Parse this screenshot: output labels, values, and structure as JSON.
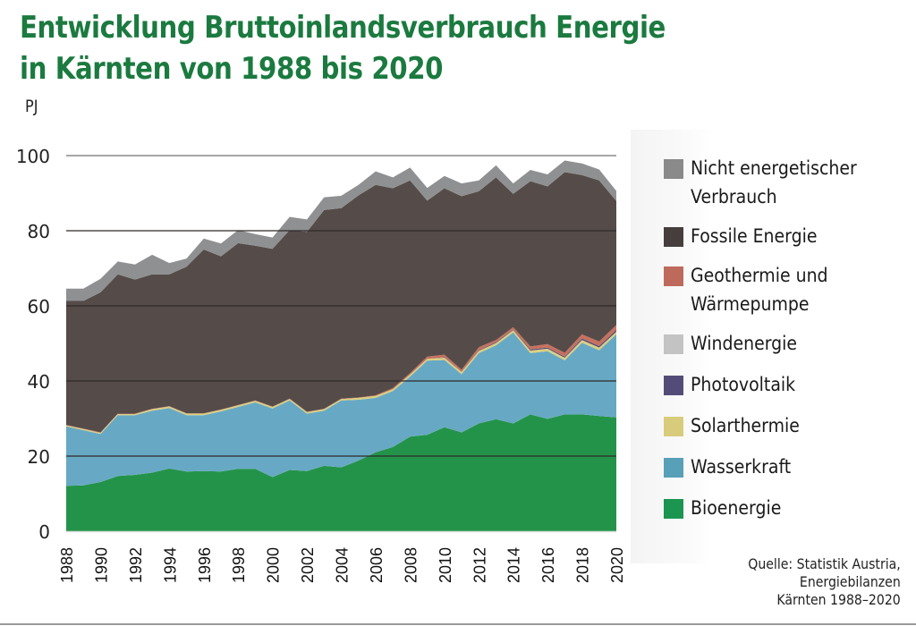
{
  "chart_data": {
    "type": "area",
    "stacked": true,
    "title": "Entwicklung Bruttoinlandsverbrauch Energie in Kärnten von 1988 bis 2020",
    "title_lines": [
      "Entwicklung Bruttoinlandsverbrauch Energie",
      "in Kärnten von 1988 bis 2020"
    ],
    "ylabel": "PJ",
    "xlabel": "",
    "ylim": [
      0,
      100
    ],
    "yticks": [
      0,
      20,
      40,
      60,
      80,
      100
    ],
    "grid": true,
    "legend_position": "right",
    "x": [
      1988,
      1989,
      1990,
      1991,
      1992,
      1993,
      1994,
      1995,
      1996,
      1997,
      1998,
      1999,
      2000,
      2001,
      2002,
      2003,
      2004,
      2005,
      2006,
      2007,
      2008,
      2009,
      2010,
      2011,
      2012,
      2013,
      2014,
      2015,
      2016,
      2017,
      2018,
      2019,
      2020
    ],
    "xtick_labels": [
      "1988",
      "1990",
      "1992",
      "1994",
      "1996",
      "1998",
      "2000",
      "2002",
      "2004",
      "2006",
      "2008",
      "2010",
      "2012",
      "2014",
      "2016",
      "2018",
      "2020"
    ],
    "series": [
      {
        "name": "Bioenergie",
        "color": "#24934a",
        "values": [
          12.1,
          12.2,
          13.1,
          14.7,
          15.0,
          15.6,
          16.7,
          15.9,
          16.0,
          15.9,
          16.6,
          16.6,
          14.4,
          16.3,
          16.0,
          17.4,
          17.0,
          18.8,
          21.0,
          22.4,
          25.2,
          25.7,
          27.7,
          26.3,
          28.7,
          29.8,
          28.7,
          31.1,
          29.9,
          31.1,
          31.1,
          30.7,
          30.3
        ]
      },
      {
        "name": "Wasserkraft",
        "color": "#67a9c4",
        "values": [
          15.8,
          14.7,
          12.8,
          16.2,
          15.9,
          16.5,
          16.1,
          15.0,
          14.9,
          16.0,
          16.5,
          17.7,
          18.3,
          18.5,
          15.3,
          14.7,
          17.8,
          16.2,
          14.5,
          14.9,
          16.0,
          19.7,
          17.9,
          15.5,
          18.7,
          19.7,
          24.2,
          16.3,
          18.0,
          14.4,
          19.1,
          17.5,
          22.1
        ]
      },
      {
        "name": "Solarthermie",
        "color": "#dccf7e",
        "values": [
          0.3,
          0.3,
          0.3,
          0.3,
          0.3,
          0.4,
          0.4,
          0.4,
          0.4,
          0.4,
          0.4,
          0.4,
          0.4,
          0.4,
          0.4,
          0.4,
          0.4,
          0.5,
          0.5,
          0.5,
          0.5,
          0.5,
          0.6,
          0.6,
          0.6,
          0.6,
          0.6,
          0.7,
          0.7,
          0.7,
          0.7,
          0.7,
          0.7
        ]
      },
      {
        "name": "Photovoltaik",
        "color": "#544c78",
        "values": [
          0,
          0,
          0,
          0,
          0,
          0,
          0,
          0,
          0,
          0,
          0,
          0,
          0,
          0,
          0,
          0,
          0,
          0,
          0,
          0,
          0,
          0,
          0.1,
          0.1,
          0.2,
          0.2,
          0.2,
          0.3,
          0.3,
          0.3,
          0.4,
          0.4,
          0.5
        ]
      },
      {
        "name": "Windenergie",
        "color": "#c3c3c3",
        "values": [
          0,
          0,
          0,
          0,
          0,
          0,
          0,
          0,
          0,
          0,
          0,
          0,
          0,
          0,
          0,
          0,
          0,
          0,
          0,
          0,
          0,
          0,
          0,
          0,
          0,
          0,
          0,
          0,
          0,
          0,
          0,
          0,
          0
        ]
      },
      {
        "name": "Geothermie und Wärmepumpe",
        "color": "#c8705e",
        "values": [
          0.1,
          0.1,
          0.1,
          0.1,
          0.1,
          0.1,
          0.1,
          0.1,
          0.1,
          0.1,
          0.1,
          0.1,
          0.1,
          0.1,
          0.1,
          0.1,
          0.1,
          0.1,
          0.2,
          0.3,
          0.4,
          0.6,
          0.7,
          0.5,
          0.8,
          0.6,
          0.6,
          0.8,
          0.9,
          1.0,
          1.1,
          1.2,
          1.3
        ]
      },
      {
        "name": "Fossile Energie",
        "color": "#554c49",
        "values": [
          33.0,
          34.0,
          37.3,
          37.1,
          35.7,
          35.8,
          35.1,
          39.0,
          43.6,
          40.8,
          43.1,
          41.2,
          42.0,
          44.9,
          47.9,
          52.9,
          50.7,
          53.8,
          56.0,
          53.2,
          51.3,
          41.5,
          44.3,
          46.2,
          41.5,
          43.3,
          35.5,
          44.0,
          42.0,
          48.1,
          42.4,
          42.9,
          33.0
        ]
      },
      {
        "name": "Nicht energetischer Verbrauch",
        "color": "#8f9092",
        "values": [
          3.3,
          3.3,
          3.6,
          3.4,
          4.0,
          5.2,
          3.0,
          2.2,
          2.9,
          3.4,
          3.5,
          3.1,
          3.0,
          3.5,
          3.3,
          3.4,
          3.3,
          2.8,
          3.6,
          2.9,
          3.4,
          3.4,
          3.3,
          3.4,
          2.9,
          3.2,
          2.8,
          3.0,
          3.2,
          3.1,
          3.1,
          2.9,
          2.7
        ]
      }
    ],
    "legend_order": [
      "Nicht energetischer Verbrauch",
      "Fossile Energie",
      "Geothermie und Wärmepumpe",
      "Windenergie",
      "Photovoltaik",
      "Solarthermie",
      "Wasserkraft",
      "Bioenergie"
    ],
    "source": "Quelle: Statistik Austria,\nEnergiebilanzen\nKärnten 1988–2020"
  },
  "legend": [
    {
      "label": "Nicht energetischer\nVerbrauch",
      "color": "#8a8a8a"
    },
    {
      "label": "Fossile Energie",
      "color": "#453e3c"
    },
    {
      "label": "Geothermie und\nWärmepumpe",
      "color": "#bd6a5c"
    },
    {
      "label": "Windenergie",
      "color": "#c3c3c3"
    },
    {
      "label": "Photovoltaik",
      "color": "#544c78"
    },
    {
      "label": "Solarthermie",
      "color": "#d8cc7c"
    },
    {
      "label": "Wasserkraft",
      "color": "#58a0b8"
    },
    {
      "label": "Bioenergie",
      "color": "#1c9550"
    }
  ]
}
